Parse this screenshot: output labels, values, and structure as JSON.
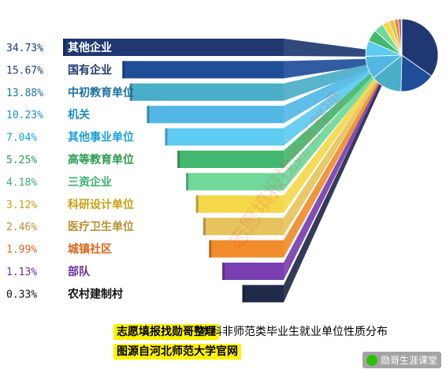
{
  "chart_data": {
    "type": "bar",
    "title": "本科非师范类毕业生就业单位性质分布",
    "categories": [
      "其他企业",
      "国有企业",
      "中初教育单位",
      "机关",
      "其他事业单位",
      "高等教育单位",
      "三资企业",
      "科研设计单位",
      "医疗卫生单位",
      "城镇社区",
      "部队",
      "农村建制村"
    ],
    "values": [
      34.73,
      15.67,
      13.88,
      10.23,
      7.04,
      5.25,
      4.18,
      3.12,
      2.46,
      1.99,
      1.13,
      0.33
    ],
    "value_labels": [
      "34.73%",
      "15.67%",
      "13.88%",
      "10.23%",
      "7.04%",
      "5.25%",
      "4.18%",
      "3.12%",
      "2.46%",
      "1.99%",
      "1.13%",
      "0.33%"
    ],
    "colors": [
      "#1f3872",
      "#1f4e99",
      "#4aaec8",
      "#53b7e6",
      "#5ecbf0",
      "#43b86f",
      "#6fd89a",
      "#f5d74a",
      "#e6c35c",
      "#f08c2a",
      "#7a3fb0",
      "#222a4a"
    ],
    "label_colors": [
      "#1f3872",
      "#1f3872",
      "#1f6fa0",
      "#1f8fc0",
      "#1aa0d8",
      "#2b9a50",
      "#3bb070",
      "#c8a010",
      "#b89030",
      "#d8641a",
      "#6a2fa0",
      "#111111"
    ],
    "label_highlight_first": true
  },
  "footer": {
    "brand": "志愿填报找勋哥整理",
    "source": "图源自河北师范大学官网"
  },
  "watermark": "志愿填报找勋哥整理",
  "wechat_badge": "勋哥生涯课堂"
}
